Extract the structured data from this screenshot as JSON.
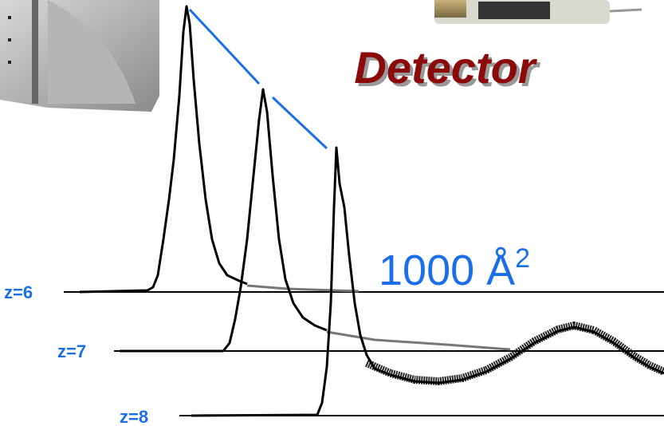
{
  "title": "Detector",
  "annotation": {
    "base": "1000 Å",
    "sup": "2"
  },
  "traces": [
    {
      "label": "z=6"
    },
    {
      "label": "z=7"
    },
    {
      "label": "z=8"
    }
  ]
}
